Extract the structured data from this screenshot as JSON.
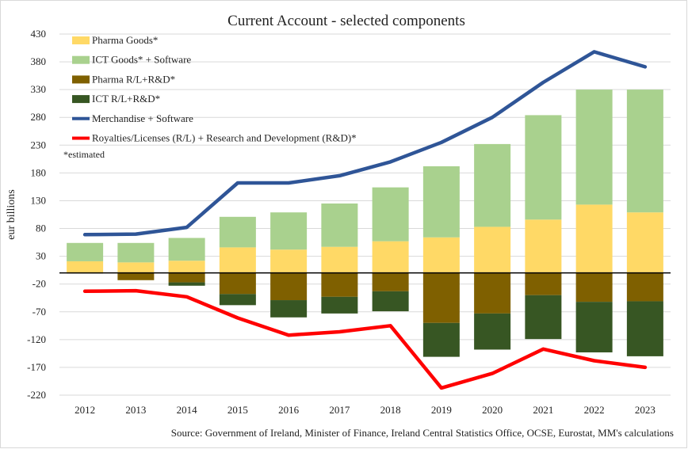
{
  "chart_data": {
    "type": "bar",
    "title": "Current Account - selected components",
    "ylabel": "eur billions",
    "xlabel": "",
    "ylim": [
      -220,
      430
    ],
    "yticks": [
      430,
      380,
      330,
      280,
      230,
      180,
      130,
      80,
      30,
      -20,
      -70,
      -120,
      -170,
      -220
    ],
    "categories": [
      "2012",
      "2013",
      "2014",
      "2015",
      "2016",
      "2017",
      "2018",
      "2019",
      "2020",
      "2021",
      "2022",
      "2023"
    ],
    "stacked_positive": [
      {
        "name": "Pharma Goods*",
        "color": "#FFD966",
        "values": [
          21,
          19,
          22,
          46,
          42,
          47,
          57,
          64,
          83,
          96,
          123,
          109
        ]
      },
      {
        "name": "ICT Goods* + Software",
        "color": "#A9D18E",
        "values": [
          33,
          35,
          41,
          55,
          67,
          78,
          97,
          128,
          149,
          188,
          207,
          221
        ]
      }
    ],
    "stacked_negative": [
      {
        "name": "Pharma R/L+R&D*",
        "color": "#7F6000",
        "values": [
          -1,
          -13,
          -17,
          -38,
          -49,
          -43,
          -33,
          -90,
          -73,
          -40,
          -52,
          -51
        ]
      },
      {
        "name": "ICT R/L+R&D*",
        "color": "#375623",
        "values": [
          0,
          0,
          -6,
          -20,
          -31,
          -30,
          -36,
          -61,
          -65,
          -79,
          -91,
          -99
        ]
      }
    ],
    "lines": [
      {
        "name": "Merchandise + Software",
        "color": "#2F5597",
        "values": [
          69,
          70,
          82,
          162,
          162,
          175,
          200,
          235,
          280,
          343,
          398,
          371
        ]
      },
      {
        "name": "Royalties/Licenses (R/L) + Research and Development (R&D)*",
        "color": "#FF0000",
        "values": [
          -33,
          -32,
          -43,
          -81,
          -112,
          -106,
          -95,
          -207,
          -181,
          -137,
          -158,
          -170
        ]
      }
    ],
    "legend_note": "*estimated",
    "legend_position": "top-left",
    "source": "Source: Government of Ireland, Minister of Finance, Ireland Central Statistics Office, OCSE, Eurostat, MM's calculations",
    "grid": true
  }
}
